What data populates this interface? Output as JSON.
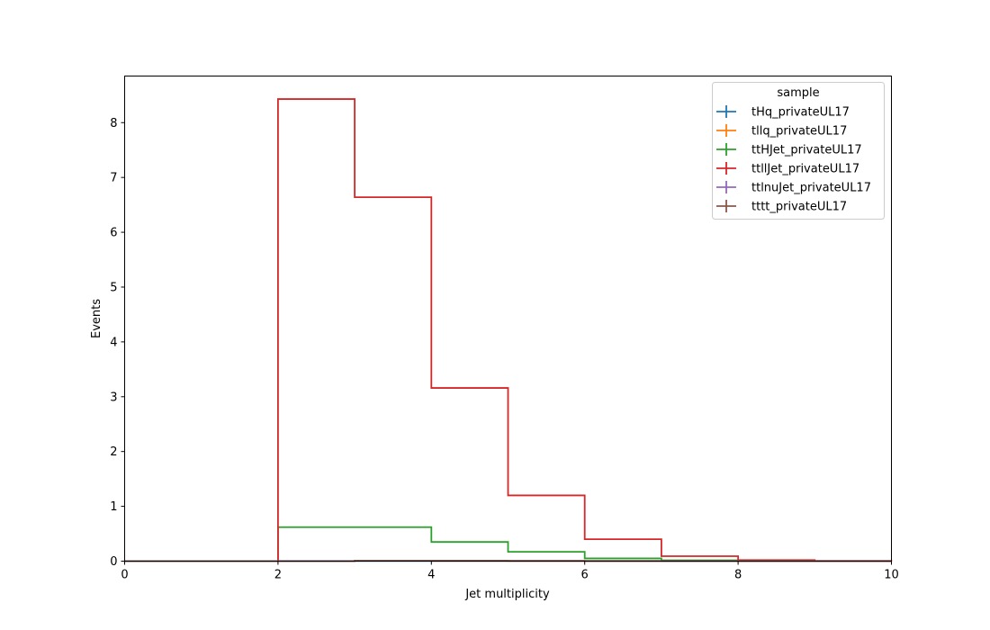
{
  "chart_data": {
    "type": "line",
    "drawstyle": "steps",
    "title": "",
    "xlabel": "Jet multiplicity",
    "ylabel": "Events",
    "xlim": [
      0,
      10
    ],
    "ylim": [
      0,
      8.85
    ],
    "x_ticks": [
      "0",
      "2",
      "4",
      "6",
      "8",
      "10"
    ],
    "y_ticks": [
      "0",
      "1",
      "2",
      "3",
      "4",
      "5",
      "6",
      "7",
      "8"
    ],
    "grid": false,
    "legend": {
      "title": "sample",
      "placement": "top-right"
    },
    "bin_edges": [
      0,
      1,
      2,
      3,
      4,
      5,
      6,
      7,
      8,
      9,
      10
    ],
    "series": [
      {
        "name": "tHq_privateUL17",
        "color": "#1f77b4",
        "values": [
          0,
          0,
          0,
          0.003,
          0.003,
          0.002,
          0.001,
          0.0005,
          0.0002,
          0
        ]
      },
      {
        "name": "tllq_privateUL17",
        "color": "#ff7f0e",
        "values": [
          0,
          0,
          0.002,
          0.006,
          0.004,
          0.002,
          0.001,
          0.0005,
          0.0002,
          0
        ]
      },
      {
        "name": "ttHJet_privateUL17",
        "color": "#2ca02c",
        "values": [
          0,
          0,
          0.62,
          0.62,
          0.35,
          0.17,
          0.05,
          0.015,
          0.004,
          0
        ]
      },
      {
        "name": "ttllJet_privateUL17",
        "color": "#d62728",
        "values": [
          0,
          0,
          8.43,
          6.64,
          3.16,
          1.2,
          0.4,
          0.09,
          0.02,
          0.005
        ]
      },
      {
        "name": "ttlnuJet_privateUL17",
        "color": "#9467bd",
        "values": [
          0,
          0,
          0.004,
          0.01,
          0.008,
          0.004,
          0.002,
          0.001,
          0.0003,
          0
        ]
      },
      {
        "name": "tttt_privateUL17",
        "color": "#8c564b",
        "values": [
          0,
          0,
          0,
          0.01,
          0.01,
          0.008,
          0.005,
          0.003,
          0.001,
          0
        ]
      }
    ]
  }
}
